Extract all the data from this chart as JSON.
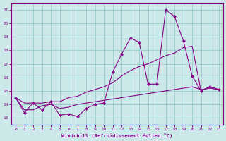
{
  "xlabel": "Windchill (Refroidissement éolien,°C)",
  "ylabel": "",
  "background_color": "#cce8e8",
  "line_color": "#880088",
  "grid_color": "#99cccc",
  "xlim": [
    -0.5,
    23.5
  ],
  "ylim": [
    12.5,
    21.5
  ],
  "yticks": [
    13,
    14,
    15,
    16,
    17,
    18,
    19,
    20,
    21
  ],
  "xticks": [
    0,
    1,
    2,
    3,
    4,
    5,
    6,
    7,
    8,
    9,
    10,
    11,
    12,
    13,
    14,
    15,
    16,
    17,
    18,
    19,
    20,
    21,
    22,
    23
  ],
  "series_marked": [
    [
      14.5,
      13.4,
      14.1,
      13.6,
      14.2,
      13.2,
      13.3,
      13.1,
      13.7,
      14.0,
      14.1,
      16.4,
      17.7,
      18.9,
      18.6,
      15.5,
      15.5,
      21.0,
      20.5,
      18.7,
      16.1,
      15.0,
      15.3,
      15.1
    ]
  ],
  "series_smooth": [
    [
      14.5,
      14.1,
      14.1,
      14.1,
      14.2,
      14.2,
      14.5,
      14.6,
      14.9,
      15.1,
      15.3,
      15.6,
      16.1,
      16.5,
      16.8,
      17.0,
      17.3,
      17.6,
      17.8,
      18.2,
      18.3,
      15.0,
      15.3,
      15.1
    ],
    [
      14.5,
      13.6,
      13.6,
      13.9,
      14.0,
      13.7,
      13.8,
      14.0,
      14.1,
      14.2,
      14.3,
      14.4,
      14.5,
      14.6,
      14.7,
      14.8,
      14.9,
      15.0,
      15.1,
      15.2,
      15.3,
      15.1,
      15.2,
      15.1
    ]
  ]
}
